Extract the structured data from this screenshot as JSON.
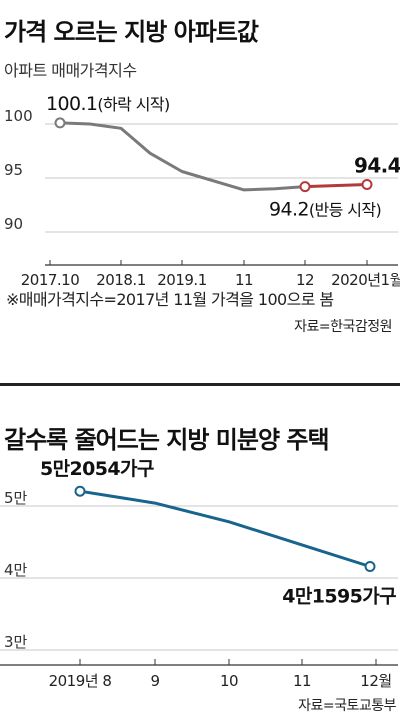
{
  "charts": [
    {
      "title": "가격 오르는 지방 아파트값",
      "subtitle": "아파트 매매가격지수",
      "note": "※매매가격지수=2017년 11월 가격을 100으로 봄",
      "source": "자료=한국감정원",
      "colors": {
        "line": "#7a7a7a",
        "highlight": "#b5383a",
        "grid": "#c8c8c8"
      }
    },
    {
      "title": "갈수록 줄어드는 지방 미분양 주택",
      "source": "자료=국토교통부",
      "colors": {
        "line": "#17648f",
        "grid": "#c8c8c8"
      }
    }
  ],
  "chart_data": [
    {
      "type": "line",
      "title": "가격 오르는 지방 아파트값",
      "subtitle": "아파트 매매가격지수",
      "x": [
        "2017.10",
        "2017.11",
        "2018.1",
        "2018.7",
        "2019.1",
        "2019.7",
        "11",
        "12",
        "2020.1"
      ],
      "x_tick_labels": [
        "2017.10",
        "2018.1",
        "2019.1",
        "11",
        "12",
        "2020년1월"
      ],
      "series": [
        {
          "values": [
            100.1,
            100.0,
            99.6,
            97.3,
            95.6,
            93.9,
            94.0,
            94.2,
            94.4
          ]
        }
      ],
      "ylim": [
        90,
        100
      ],
      "y_ticks": [
        100,
        95,
        90
      ],
      "annotations": [
        {
          "x": "2017.10",
          "text": "100.1",
          "suffix": "(하락 시작)"
        },
        {
          "x": "12",
          "text": "94.2",
          "suffix": "(반등 시작)"
        },
        {
          "x": "2020.1",
          "text": "94.4"
        }
      ],
      "highlight_segment": [
        "12",
        "2020.1"
      ],
      "grid": "horizontal"
    },
    {
      "type": "line",
      "title": "갈수록 줄어드는 지방 미분양 주택",
      "x": [
        "2019년 8",
        "9",
        "10",
        "11",
        "12월"
      ],
      "series": [
        {
          "values": [
            52054,
            50400,
            47800,
            44600,
            41595
          ]
        }
      ],
      "ylim": [
        30000,
        50000
      ],
      "y_ticks": [
        {
          "v": 50000,
          "label": "5만"
        },
        {
          "v": 40000,
          "label": "4만"
        },
        {
          "v": 30000,
          "label": "3만"
        }
      ],
      "annotations": [
        {
          "x": "2019년 8",
          "text": "5만2054가구"
        },
        {
          "x": "12월",
          "text": "4만1595가구"
        }
      ],
      "grid": "horizontal"
    }
  ]
}
